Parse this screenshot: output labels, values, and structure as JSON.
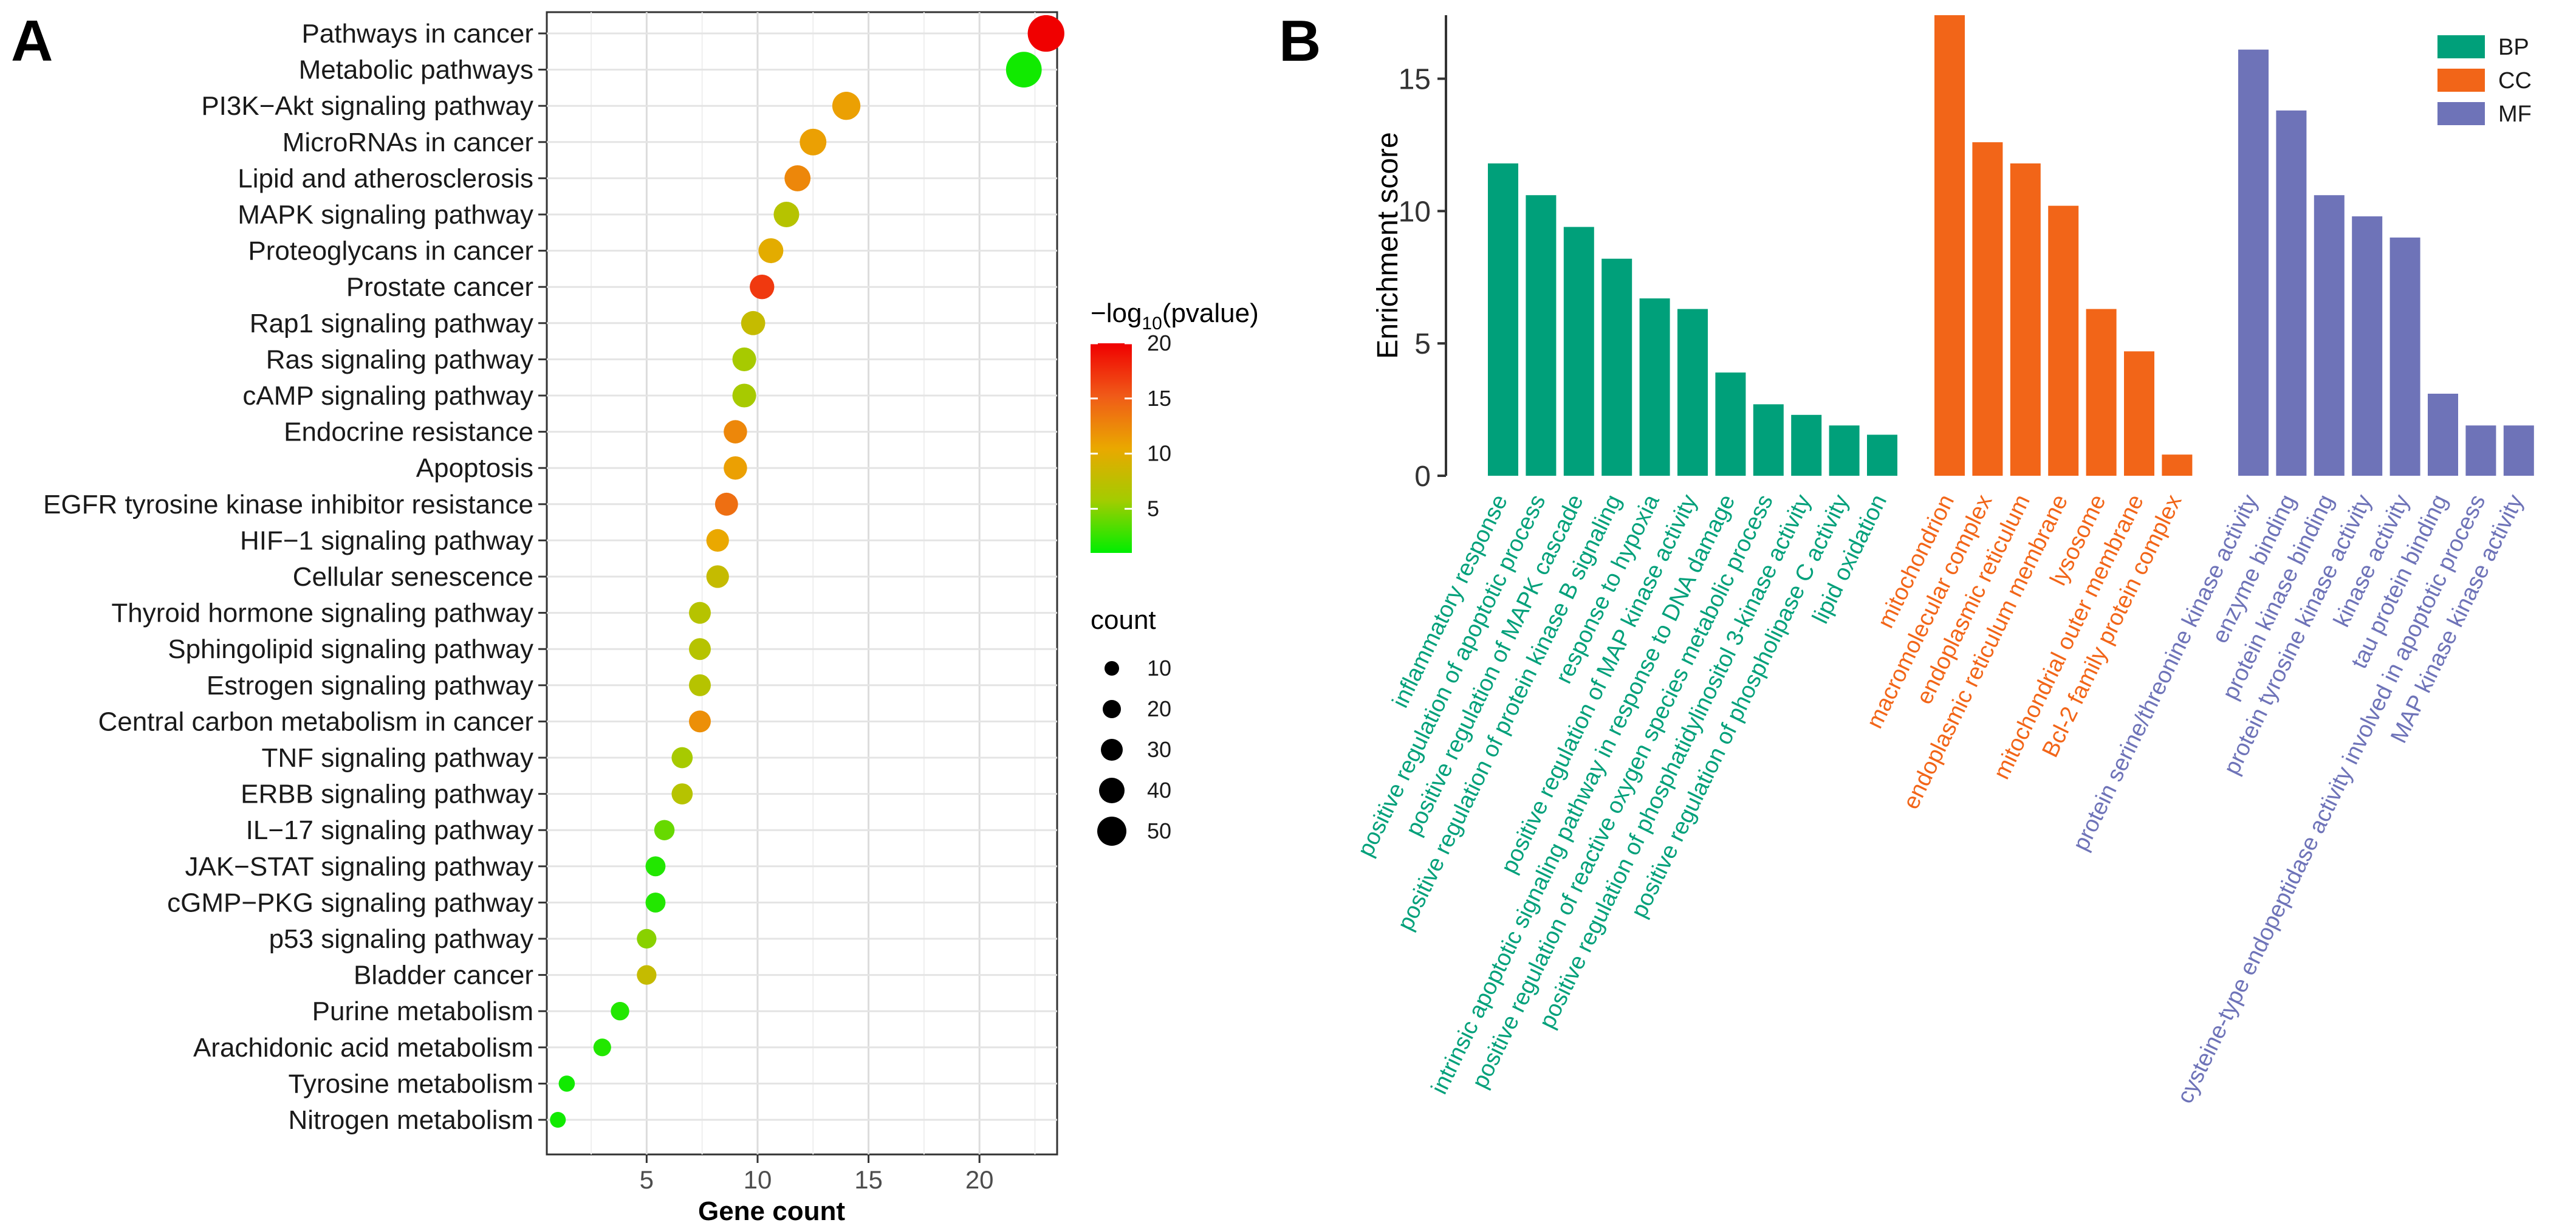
{
  "panels": {
    "a_label": "A",
    "b_label": "B"
  },
  "chart_data": [
    {
      "type": "scatter",
      "title": "",
      "xlabel": "Gene count",
      "ylabel": "",
      "xlim": [
        0.5,
        23.5
      ],
      "xticks": [
        5,
        10,
        15,
        20
      ],
      "grid": true,
      "color_legend": {
        "title_prefix": "−log",
        "title_sub": "10",
        "title_suffix": "(pvalue)",
        "ticks": [
          20,
          15,
          10,
          5
        ],
        "range": [
          1,
          20
        ],
        "colors": [
          "#00ee00",
          "#a3cc00",
          "#eaa800",
          "#f05a18",
          "#f00000"
        ]
      },
      "size_legend": {
        "title": "count",
        "values": [
          10,
          20,
          30,
          40,
          50
        ]
      },
      "points": [
        {
          "pathway": "Pathways in cancer",
          "count": 23,
          "neglog10p": 20
        },
        {
          "pathway": "Metabolic pathways",
          "count": 22,
          "neglog10p": 1.5
        },
        {
          "pathway": "PI3K−Akt signaling pathway",
          "count": 14,
          "neglog10p": 11
        },
        {
          "pathway": "MicroRNAs in cancer",
          "count": 12.5,
          "neglog10p": 11
        },
        {
          "pathway": "Lipid and atherosclerosis",
          "count": 11.8,
          "neglog10p": 12.5
        },
        {
          "pathway": "MAPK signaling pathway",
          "count": 11.3,
          "neglog10p": 7
        },
        {
          "pathway": "Proteoglycans in cancer",
          "count": 10.6,
          "neglog10p": 10
        },
        {
          "pathway": "Prostate cancer",
          "count": 10.2,
          "neglog10p": 17
        },
        {
          "pathway": "Rap1 signaling pathway",
          "count": 9.8,
          "neglog10p": 8
        },
        {
          "pathway": "Ras signaling pathway",
          "count": 9.4,
          "neglog10p": 6
        },
        {
          "pathway": "cAMP signaling pathway",
          "count": 9.4,
          "neglog10p": 6
        },
        {
          "pathway": "Endocrine resistance",
          "count": 9.0,
          "neglog10p": 12.5
        },
        {
          "pathway": "Apoptosis",
          "count": 9.0,
          "neglog10p": 11
        },
        {
          "pathway": "EGFR tyrosine kinase inhibitor resistance",
          "count": 8.6,
          "neglog10p": 14
        },
        {
          "pathway": "HIF−1 signaling pathway",
          "count": 8.2,
          "neglog10p": 10.5
        },
        {
          "pathway": "Cellular senescence",
          "count": 8.2,
          "neglog10p": 8
        },
        {
          "pathway": "Thyroid hormone signaling pathway",
          "count": 7.4,
          "neglog10p": 7
        },
        {
          "pathway": "Sphingolipid signaling pathway",
          "count": 7.4,
          "neglog10p": 7
        },
        {
          "pathway": "Estrogen signaling pathway",
          "count": 7.4,
          "neglog10p": 7
        },
        {
          "pathway": "Central carbon metabolism in cancer",
          "count": 7.4,
          "neglog10p": 12
        },
        {
          "pathway": "TNF signaling pathway",
          "count": 6.6,
          "neglog10p": 6
        },
        {
          "pathway": "ERBB signaling pathway",
          "count": 6.6,
          "neglog10p": 7
        },
        {
          "pathway": "IL−17 signaling pathway",
          "count": 5.8,
          "neglog10p": 4
        },
        {
          "pathway": "JAK−STAT signaling pathway",
          "count": 5.4,
          "neglog10p": 2
        },
        {
          "pathway": "cGMP−PKG signaling pathway",
          "count": 5.4,
          "neglog10p": 2
        },
        {
          "pathway": "p53 signaling pathway",
          "count": 5.0,
          "neglog10p": 5
        },
        {
          "pathway": "Bladder cancer",
          "count": 5.0,
          "neglog10p": 8
        },
        {
          "pathway": "Purine metabolism",
          "count": 3.8,
          "neglog10p": 2
        },
        {
          "pathway": "Arachidonic acid metabolism",
          "count": 3.0,
          "neglog10p": 2
        },
        {
          "pathway": "Tyrosine metabolism",
          "count": 1.4,
          "neglog10p": 1.5
        },
        {
          "pathway": "Nitrogen metabolism",
          "count": 1.0,
          "neglog10p": 1.5
        }
      ]
    },
    {
      "type": "bar",
      "title": "",
      "xlabel": "",
      "ylabel": "Enrichment score",
      "ylim": [
        0,
        17.4
      ],
      "yticks": [
        0,
        5,
        10,
        15
      ],
      "grid": false,
      "legend_position": "top-right",
      "series": [
        {
          "name": "BP",
          "color": "#00a07a",
          "categories": [
            "inflammatory response",
            "positive regulation of apoptotic process",
            "positive regulation of MAPK cascade",
            "positive regulation of protein kinase B signaling",
            "response to hypoxia",
            "positive regulation of MAP kinase activity",
            "intrinsic apoptotic signaling pathway in response to DNA damage",
            "positive regulation of reactive oxygen species metabolic process",
            "positive regulation of phosphatidylinositol 3-kinase activity",
            "positive regulation of phospholipase C activity",
            "lipid oxidation"
          ],
          "values": [
            11.8,
            10.6,
            9.4,
            8.2,
            6.7,
            6.3,
            3.9,
            2.7,
            2.3,
            1.9,
            1.55
          ]
        },
        {
          "name": "CC",
          "color": "#f26518",
          "categories": [
            "mitochondrion",
            "macromolecular complex",
            "endoplasmic reticulum",
            "endoplasmic reticulum membrane",
            "lysosome",
            "mitochondrial outer membrane",
            "Bcl-2 family protein complex"
          ],
          "values": [
            17.4,
            12.6,
            11.8,
            10.2,
            6.3,
            4.7,
            0.8
          ]
        },
        {
          "name": "MF",
          "color": "#6e73b8",
          "categories": [
            "protein serine/threonine kinase activity",
            "enzyme binding",
            "protein kinase binding",
            "protein tyrosine kinase activity",
            "kinase activity",
            "tau protein binding",
            "cysteine-type endopeptidase activity involved in apoptotic process",
            "MAP kinase kinase activity"
          ],
          "values": [
            16.1,
            13.8,
            10.6,
            9.8,
            9.0,
            3.1,
            1.9,
            1.9
          ]
        }
      ]
    }
  ]
}
